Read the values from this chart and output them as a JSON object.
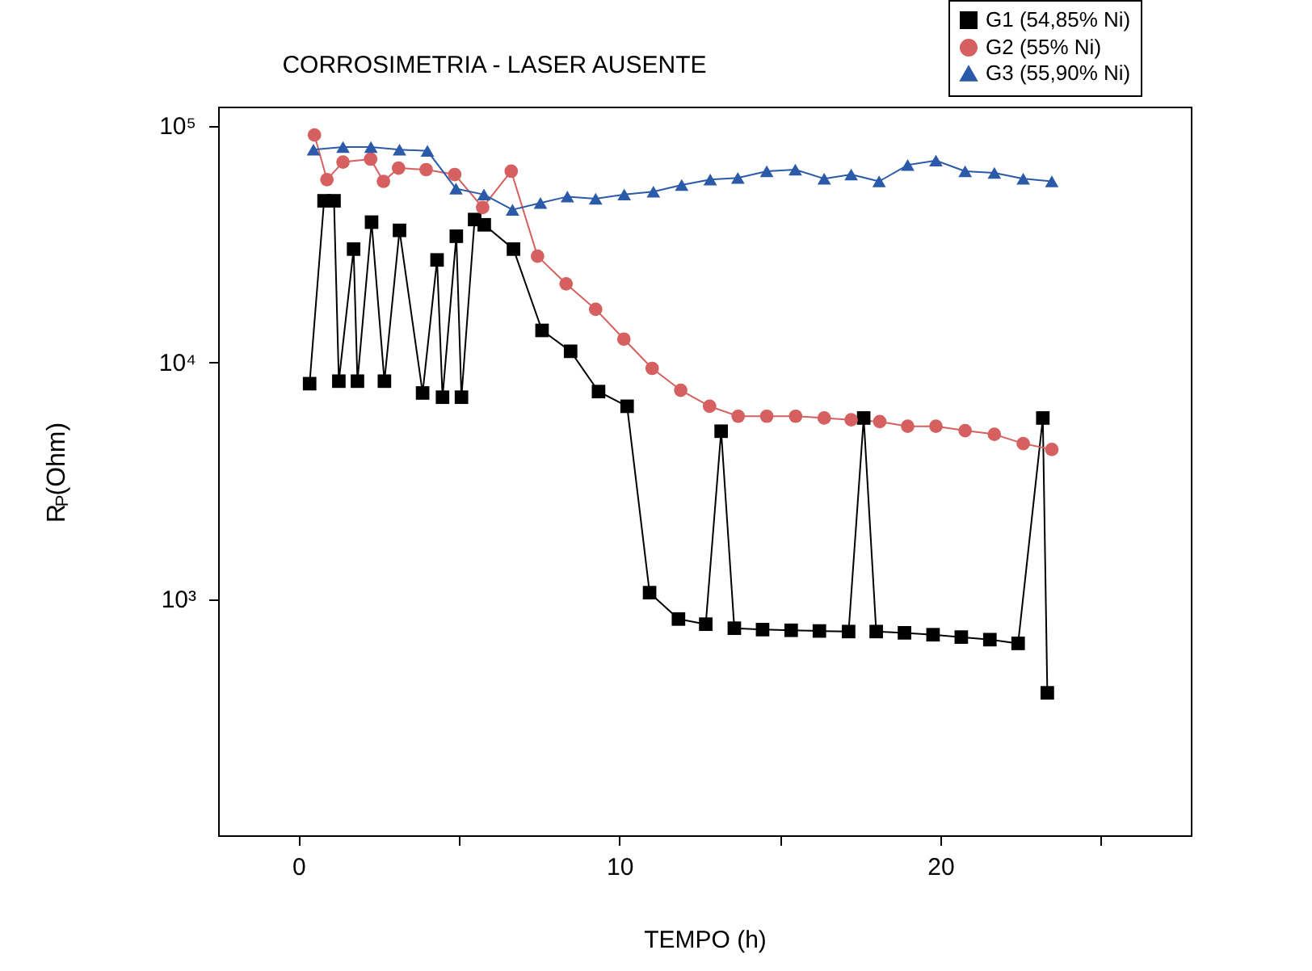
{
  "chart_data": {
    "type": "line",
    "title": "CORROSIMETRIA - LASER AUSENTE",
    "xlabel": "TEMPO (h)",
    "ylabel": "R$_{P}$(Ohm)",
    "log": "y",
    "xlim": [
      -2.5,
      27.8
    ],
    "ylim": [
      100,
      120000
    ],
    "xticks": [
      0,
      {
        "value": 5,
        "label": null
      },
      10,
      {
        "value": 15,
        "label": null
      },
      20,
      {
        "value": 25,
        "label": null
      }
    ],
    "yticks": [
      {
        "value": 1000,
        "label": "10³"
      },
      {
        "value": 10000,
        "label": "10⁴"
      },
      {
        "value": 100000,
        "label": "10⁵"
      }
    ],
    "grid": false,
    "legend": "top right",
    "line_style": "solid",
    "series": [
      {
        "name": "G1 (54,85% Ni)",
        "color": "#000000",
        "marker": "square",
        "x": [
          0.35,
          0.8,
          1.11,
          1.26,
          1.72,
          1.84,
          2.28,
          2.68,
          3.15,
          3.87,
          4.32,
          4.49,
          4.92,
          5.08,
          5.49,
          5.79,
          6.7,
          7.59,
          8.48,
          9.35,
          10.24,
          10.94,
          11.84,
          12.69,
          13.17,
          13.58,
          14.46,
          15.35,
          16.23,
          17.14,
          17.61,
          18.0,
          18.88,
          19.77,
          20.65,
          21.54,
          22.42,
          23.19,
          23.33
        ],
        "values": [
          8100,
          48000,
          48000,
          8300,
          30000,
          8300,
          39000,
          8300,
          36000,
          7400,
          27000,
          7100,
          34000,
          7100,
          40000,
          38000,
          30000,
          13600,
          11100,
          7500,
          6500,
          1060,
          820,
          780,
          5100,
          750,
          740,
          735,
          730,
          726,
          5800,
          726,
          717,
          704,
          688,
          671,
          647,
          5800,
          400
        ]
      },
      {
        "name": "G2 (55% Ni)",
        "color": "#d65f5f",
        "marker": "circle",
        "x": [
          0.5,
          0.89,
          1.39,
          2.25,
          2.65,
          3.12,
          3.98,
          4.87,
          5.74,
          6.63,
          7.45,
          8.34,
          9.26,
          10.14,
          11.02,
          11.91,
          12.81,
          13.7,
          14.59,
          15.49,
          16.38,
          17.22,
          18.11,
          18.98,
          19.86,
          20.77,
          21.68,
          22.58,
          23.47
        ],
        "values": [
          91000,
          59000,
          70000,
          72000,
          58000,
          66000,
          65000,
          62000,
          45000,
          64000,
          28000,
          21400,
          16700,
          12500,
          9400,
          7600,
          6500,
          5900,
          5900,
          5900,
          5800,
          5700,
          5600,
          5350,
          5350,
          5130,
          4950,
          4520,
          4270
        ]
      },
      {
        "name": "G3 (55,90% Ni)",
        "color": "#2a5aa8",
        "marker": "triangle",
        "x": [
          0.47,
          1.39,
          2.26,
          3.15,
          4.02,
          4.91,
          5.78,
          6.67,
          7.54,
          8.38,
          9.26,
          10.15,
          11.06,
          11.94,
          12.83,
          13.69,
          14.59,
          15.48,
          16.38,
          17.22,
          18.09,
          18.98,
          19.86,
          20.77,
          21.68,
          22.58,
          23.47
        ],
        "values": [
          79000,
          81000,
          81000,
          79000,
          78000,
          54000,
          51000,
          44000,
          47000,
          50000,
          49000,
          51000,
          52500,
          56000,
          59000,
          60000,
          64000,
          65000,
          59500,
          62000,
          58000,
          68000,
          71000,
          64000,
          63000,
          59500,
          58000
        ]
      }
    ]
  }
}
